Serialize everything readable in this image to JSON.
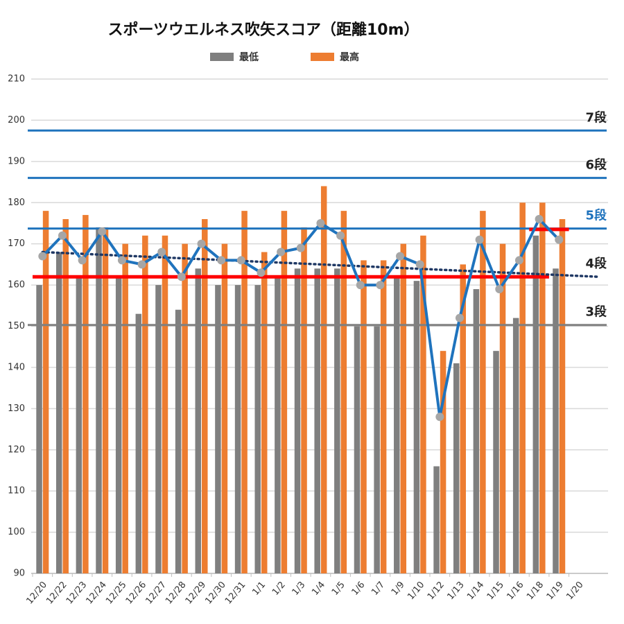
{
  "chart_data": {
    "type": "bar",
    "title": "スポーツウエルネス吹矢スコア（距離10m）",
    "categories": [
      "12/20",
      "12/22",
      "12/23",
      "12/24",
      "12/25",
      "12/26",
      "12/27",
      "12/28",
      "12/29",
      "12/30",
      "12/31",
      "1/1",
      "1/2",
      "1/3",
      "1/4",
      "1/5",
      "1/6",
      "1/7",
      "1/9",
      "1/10",
      "1/12",
      "1/13",
      "1/14",
      "1/15",
      "1/16",
      "1/18",
      "1/19",
      "1/20"
    ],
    "series": [
      {
        "name": "最低",
        "color": "#7f7f7f",
        "values": [
          160,
          168,
          162,
          174,
          162,
          153,
          160,
          154,
          164,
          160,
          160,
          160,
          162,
          164,
          164,
          164,
          150,
          150,
          162,
          161,
          116,
          141,
          159,
          144,
          152,
          172,
          164,
          null
        ]
      },
      {
        "name": "最高",
        "color": "#ed7d31",
        "values": [
          178,
          176,
          177,
          174,
          170,
          172,
          172,
          170,
          176,
          170,
          178,
          168,
          178,
          174,
          184,
          178,
          166,
          166,
          170,
          172,
          144,
          165,
          178,
          170,
          180,
          180,
          176,
          null
        ]
      },
      {
        "type": "line",
        "color": "#1f73bd",
        "marker_color": "#a6a6a6",
        "values": [
          167,
          172,
          166,
          173,
          166,
          165,
          168,
          162,
          170,
          166,
          166,
          163,
          168,
          169,
          175,
          172,
          160,
          160,
          167,
          165,
          128,
          152,
          171,
          159,
          166,
          176,
          171,
          null
        ]
      }
    ],
    "trend": {
      "color": "#1f3864",
      "values": [
        168,
        162
      ]
    },
    "reference_lines": [
      {
        "label": "7段",
        "value": 197.5,
        "color": "#1f73bd",
        "label_color": "#222222"
      },
      {
        "label": "6段",
        "value": 186,
        "color": "#1f73bd",
        "label_color": "#222222"
      },
      {
        "label": "5段",
        "value": 173.7,
        "color": "#1f73bd",
        "label_color": "#1f73bd"
      },
      {
        "label": "4段",
        "value": 162,
        "color": "#ff0000",
        "label_color": "#222222",
        "span": [
          0,
          25
        ]
      },
      {
        "value": 173.5,
        "color": "#ff0000",
        "span": [
          25,
          26
        ]
      },
      {
        "label": "3段",
        "value": 150.3,
        "color": "#808080",
        "label_color": "#222222"
      }
    ],
    "ylim": [
      90,
      210
    ],
    "yticks": [
      90,
      100,
      110,
      120,
      130,
      140,
      150,
      160,
      170,
      180,
      190,
      200,
      210
    ],
    "grid": true
  }
}
